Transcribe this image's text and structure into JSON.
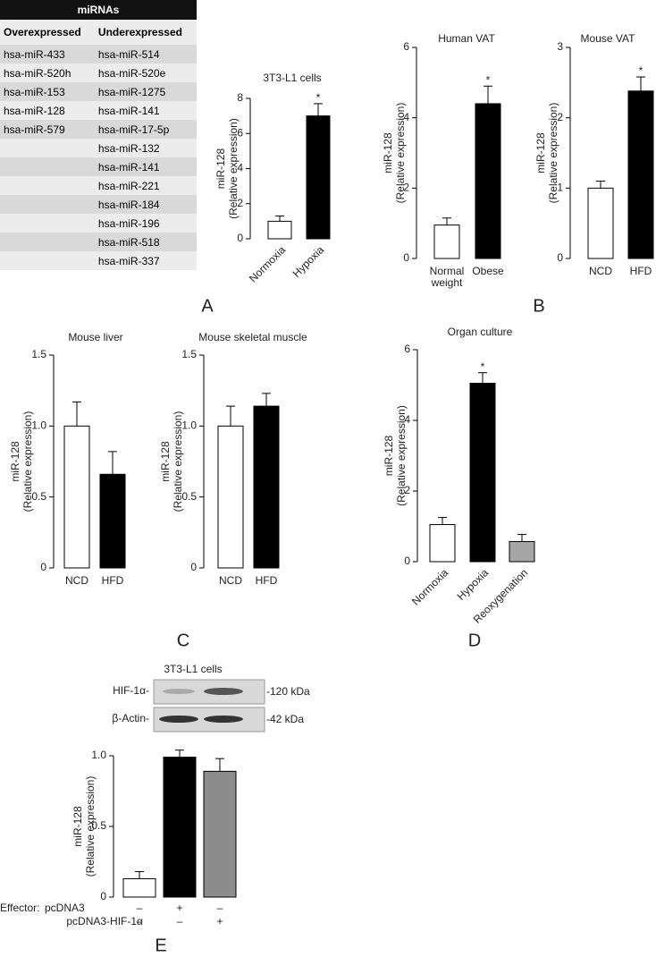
{
  "table": {
    "title": "miRNAs",
    "header": [
      "Overexpressed",
      "Underexpressed"
    ],
    "rows": [
      [
        "hsa-miR-433",
        "hsa-miR-514"
      ],
      [
        "hsa-miR-520h",
        "hsa-miR-520e"
      ],
      [
        "hsa-miR-153",
        "hsa-miR-1275"
      ],
      [
        "hsa-miR-128",
        "hsa-miR-141"
      ],
      [
        "hsa-miR-579",
        "hsa-miR-17-5p"
      ],
      [
        null,
        "hsa-miR-132"
      ],
      [
        null,
        "hsa-miR-141"
      ],
      [
        null,
        "hsa-miR-221"
      ],
      [
        null,
        "hsa-miR-184"
      ],
      [
        null,
        "hsa-miR-196"
      ],
      [
        null,
        "hsa-miR-518"
      ],
      [
        null,
        "hsa-miR-337"
      ]
    ]
  },
  "panel_labels": [
    "A",
    "B",
    "C",
    "D",
    "E"
  ],
  "blot": {
    "title": "3T3-L1 cells",
    "rows": [
      {
        "label": "HIF-1α-",
        "size": "-120 kDa"
      },
      {
        "label": "β-Actin-",
        "size": "-42 kDa"
      }
    ]
  },
  "effector": {
    "label": "Effector:",
    "rows": [
      {
        "name": "pcDNA3",
        "signs": [
          "–",
          "+",
          "–"
        ]
      },
      {
        "name": "pcDNA3-HIF-1α",
        "signs": [
          "–",
          "–",
          "+"
        ]
      }
    ]
  },
  "chart_data": [
    {
      "type": "bar",
      "title": "3T3-L1 cells",
      "ylabel": [
        "miR-128",
        "(Relative expression)"
      ],
      "categories": [
        "Normoxia",
        "Hypoxia"
      ],
      "values": [
        1.0,
        7.0
      ],
      "errors": [
        0.3,
        0.7
      ],
      "colors": [
        "#ffffff",
        "#000000"
      ],
      "annotations": [
        null,
        "*"
      ],
      "ylim": [
        0,
        8
      ],
      "yticks": [
        0,
        2,
        4,
        6,
        8
      ]
    },
    {
      "type": "bar",
      "title": "Human VAT",
      "ylabel": [
        "miR-128",
        "(Relative expression)"
      ],
      "categories": [
        "Normal weight",
        "Obese"
      ],
      "values": [
        0.95,
        4.4
      ],
      "errors": [
        0.2,
        0.5
      ],
      "colors": [
        "#ffffff",
        "#000000"
      ],
      "annotations": [
        null,
        "*"
      ],
      "ylim": [
        0,
        6
      ],
      "yticks": [
        0,
        2,
        4,
        6
      ]
    },
    {
      "type": "bar",
      "title": "Mouse VAT",
      "ylabel": [
        "miR-128",
        "(Relative expression)"
      ],
      "categories": [
        "NCD",
        "HFD"
      ],
      "values": [
        1.0,
        2.38
      ],
      "errors": [
        0.1,
        0.2
      ],
      "colors": [
        "#ffffff",
        "#000000"
      ],
      "annotations": [
        null,
        "*"
      ],
      "ylim": [
        0,
        3
      ],
      "yticks": [
        0,
        1,
        2,
        3
      ]
    },
    {
      "type": "bar",
      "title": "Mouse liver",
      "ylabel": [
        "miR-128",
        "(Relative expression)"
      ],
      "categories": [
        "NCD",
        "HFD"
      ],
      "values": [
        1.0,
        0.66
      ],
      "errors": [
        0.17,
        0.16
      ],
      "colors": [
        "#ffffff",
        "#000000"
      ],
      "ylim": [
        0,
        1.5
      ],
      "yticks": [
        0,
        0.5,
        {
          "value": 1,
          "label": "1.0"
        },
        1.5
      ]
    },
    {
      "type": "bar",
      "title": "Mouse skeletal muscle",
      "ylabel": [
        "miR-128",
        "(Relative expression)"
      ],
      "categories": [
        "NCD",
        "HFD"
      ],
      "values": [
        1.0,
        1.14
      ],
      "errors": [
        0.14,
        0.09
      ],
      "colors": [
        "#ffffff",
        "#000000"
      ],
      "ylim": [
        0,
        1.5
      ],
      "yticks": [
        0,
        0.5,
        {
          "value": 1,
          "label": "1.0"
        },
        1.5
      ]
    },
    {
      "type": "bar",
      "title": "Organ culture",
      "ylabel": [
        "miR-128",
        "(Relative expression)"
      ],
      "categories": [
        "Normoxia",
        "Hypoxia",
        "Reoxygenation"
      ],
      "values": [
        1.05,
        5.05,
        0.57
      ],
      "errors": [
        0.2,
        0.3,
        0.2
      ],
      "colors": [
        "#ffffff",
        "#000000",
        "#a6a6a6"
      ],
      "annotations": [
        null,
        "*",
        null
      ],
      "ylim": [
        0,
        6
      ],
      "yticks": [
        0,
        2,
        4,
        6
      ]
    },
    {
      "type": "bar",
      "ylabel": [
        "miR-128",
        "(Relative expression)"
      ],
      "values": [
        0.13,
        0.99,
        0.89
      ],
      "errors": [
        0.05,
        0.05,
        0.09
      ],
      "colors": [
        "#ffffff",
        "#000000",
        "#8c8c8c"
      ],
      "ylim": [
        0,
        1
      ],
      "yticks": [
        0,
        0.5,
        {
          "value": 1,
          "label": "1.0"
        }
      ]
    }
  ]
}
